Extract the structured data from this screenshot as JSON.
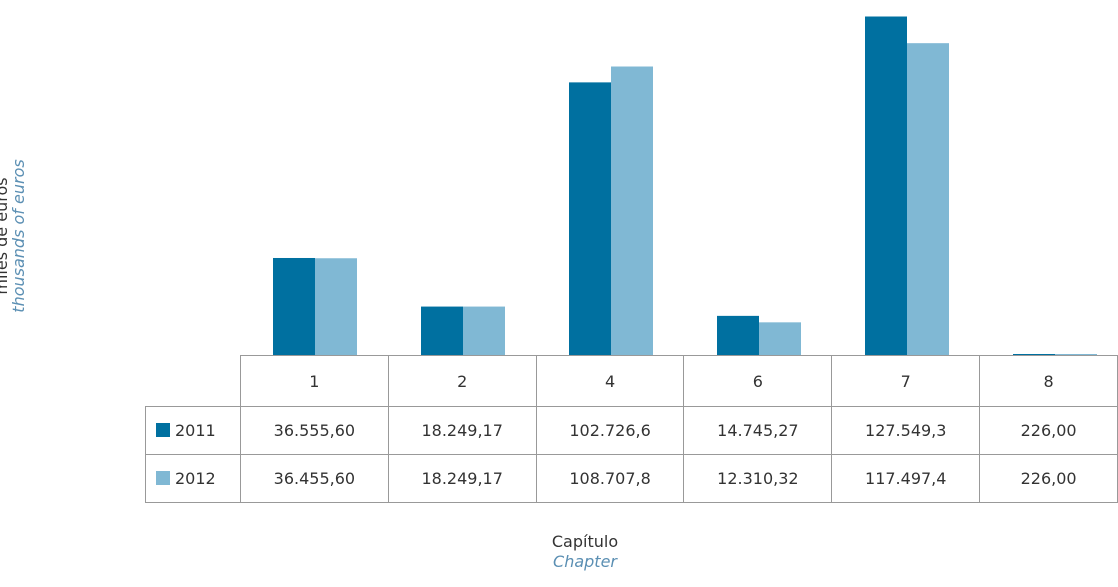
{
  "chart_data": {
    "type": "bar",
    "categories": [
      "1",
      "2",
      "4",
      "6",
      "7",
      "8"
    ],
    "series": [
      {
        "name": "2011",
        "color": "#0070a0",
        "values": [
          36555.6,
          18249.17,
          102726.6,
          14745.27,
          127549.3,
          226.0
        ],
        "labels": [
          "36.555,60",
          "18.249,17",
          "102.726,6",
          "14.745,27",
          "127.549,3",
          "226,00"
        ]
      },
      {
        "name": "2012",
        "color": "#80b8d4",
        "values": [
          36455.6,
          18249.17,
          108707.8,
          12310.32,
          117497.4,
          226.0
        ],
        "labels": [
          "36.455,60",
          "18.249,17",
          "108.707,8",
          "12.310,32",
          "117.497,4",
          "226,00"
        ]
      }
    ],
    "ylabel": "miles de euros",
    "ylabel_en": "thousands of euros",
    "xlabel": "Capítulo",
    "xlabel_en": "Chapter",
    "ylim": [
      0,
      130000
    ],
    "grid": false,
    "legend": "data-table"
  }
}
